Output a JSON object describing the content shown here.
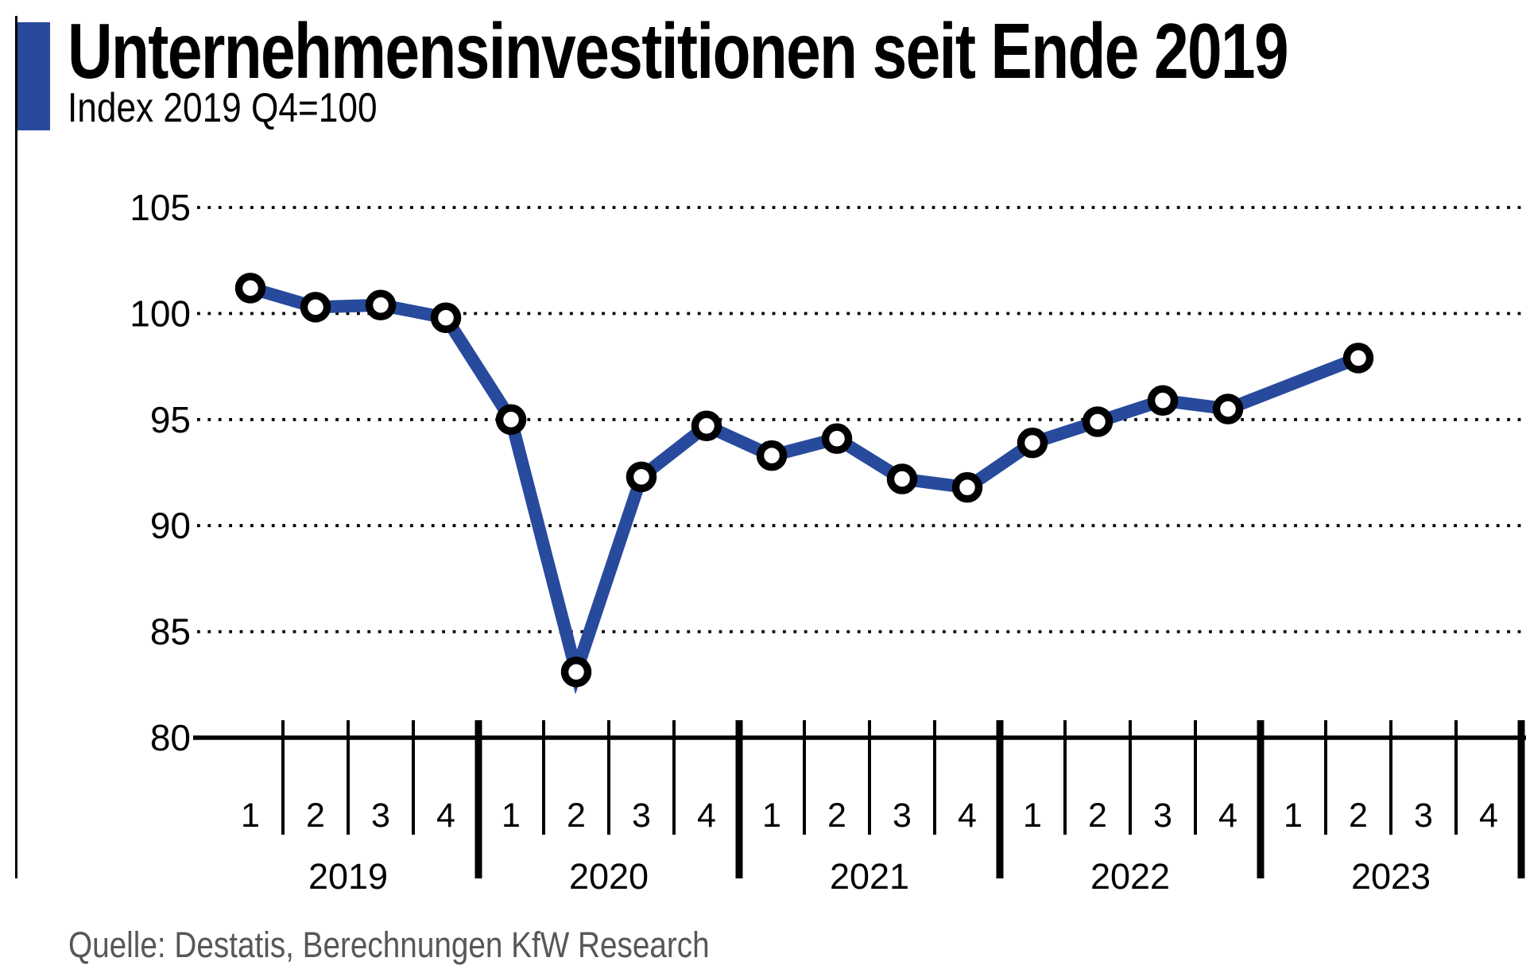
{
  "header": {
    "title": "Unternehmensinvestitionen seit Ende 2019",
    "subtitle": "Index 2019 Q4=100"
  },
  "source_line": "Quelle: Destatis, Berechnungen KfW Research",
  "colors": {
    "accent_blue": "#274a9c",
    "line_blue": "#274a9c",
    "marker_ring": "#000000",
    "marker_fill": "#ffffff",
    "axis_black": "#000000",
    "grid_dots": "#000000",
    "source_gray": "#575756"
  },
  "chart_data": {
    "type": "line",
    "title": "Unternehmensinvestitionen seit Ende 2019",
    "ylabel": "Index 2019 Q4=100",
    "ylim": [
      80,
      105
    ],
    "yticks": [
      "80",
      "85",
      "90",
      "95",
      "100",
      "105"
    ],
    "grid": "horizontal dotted, none at 80 (baseline)",
    "legend": "none",
    "marker_style": "white circle with black ring",
    "year_labels": [
      "2019",
      "2020",
      "2021",
      "2022",
      "2023"
    ],
    "quarter_labels_per_year": [
      "1",
      "2",
      "3",
      "4"
    ],
    "categories": [
      "2019 Q1",
      "2019 Q2",
      "2019 Q3",
      "2019 Q4",
      "2020 Q1",
      "2020 Q2",
      "2020 Q3",
      "2020 Q4",
      "2021 Q1",
      "2021 Q2",
      "2021 Q3",
      "2021 Q4",
      "2022 Q1",
      "2022 Q2",
      "2022 Q3",
      "2022 Q4",
      "2023 Q1",
      "2023 Q2",
      "2023 Q3",
      "2023 Q4"
    ],
    "series": [
      {
        "name": "Unternehmensinvestitionen, Index 2019 Q4=100",
        "values": [
          101.2,
          100.3,
          100.4,
          99.8,
          95.0,
          83.1,
          92.3,
          94.7,
          93.3,
          94.1,
          92.2,
          91.8,
          93.9,
          94.9,
          95.9,
          95.5,
          null,
          97.9,
          null,
          null
        ]
      }
    ]
  }
}
